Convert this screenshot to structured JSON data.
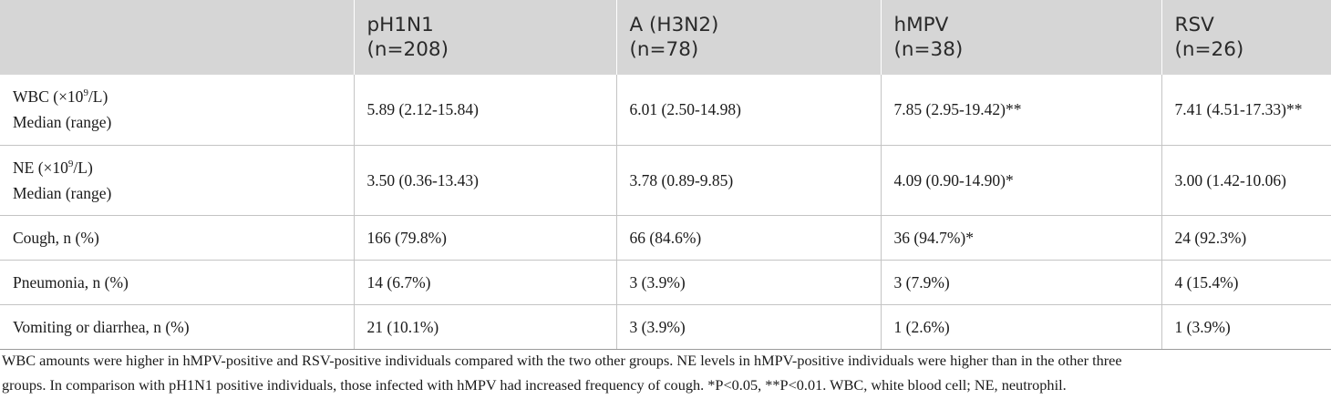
{
  "table": {
    "headers": [
      {
        "line1": "",
        "line2": ""
      },
      {
        "line1": "pH1N1",
        "line2": "(n=208)"
      },
      {
        "line1": "A (H3N2)",
        "line2": "(n=78)"
      },
      {
        "line1": "hMPV",
        "line2": "(n=38)"
      },
      {
        "line1": "RSV",
        "line2": "(n=26)"
      }
    ],
    "rows": [
      {
        "label": {
          "pre": "WBC (×10",
          "sup": "9",
          "post": "/L)",
          "line2": "Median (range)"
        },
        "cells": [
          "5.89 (2.12-15.84)",
          "6.01 (2.50-14.98)",
          "7.85 (2.95-19.42)**",
          "7.41 (4.51-17.33)**"
        ]
      },
      {
        "label": {
          "pre": "NE (×10",
          "sup": "9",
          "post": "/L)",
          "line2": "Median (range)"
        },
        "cells": [
          "3.50 (0.36-13.43)",
          "3.78 (0.89-9.85)",
          "4.09 (0.90-14.90)*",
          "3.00 (1.42-10.06)"
        ]
      },
      {
        "label": {
          "text": "Cough, n (%)"
        },
        "cells": [
          "166 (79.8%)",
          "66 (84.6%)",
          "36 (94.7%)*",
          "24 (92.3%)"
        ]
      },
      {
        "label": {
          "text": "Pneumonia, n (%)"
        },
        "cells": [
          "14 (6.7%)",
          "3 (3.9%)",
          "3 (7.9%)",
          "4 (15.4%)"
        ]
      },
      {
        "label": {
          "text": "Vomiting or diarrhea, n (%)"
        },
        "cells": [
          "21 (10.1%)",
          "3 (3.9%)",
          "1 (2.6%)",
          "1 (3.9%)"
        ]
      }
    ]
  },
  "footnote": {
    "line1": "WBC amounts were higher in hMPV-positive and RSV-positive individuals compared with the two other groups. NE levels in hMPV-positive individuals were higher than in the other three",
    "line2": "groups. In comparison with pH1N1 positive individuals, those infected with hMPV had increased frequency of cough. *P<0.05, **P<0.01. WBC, white blood cell; NE, neutrophil."
  }
}
